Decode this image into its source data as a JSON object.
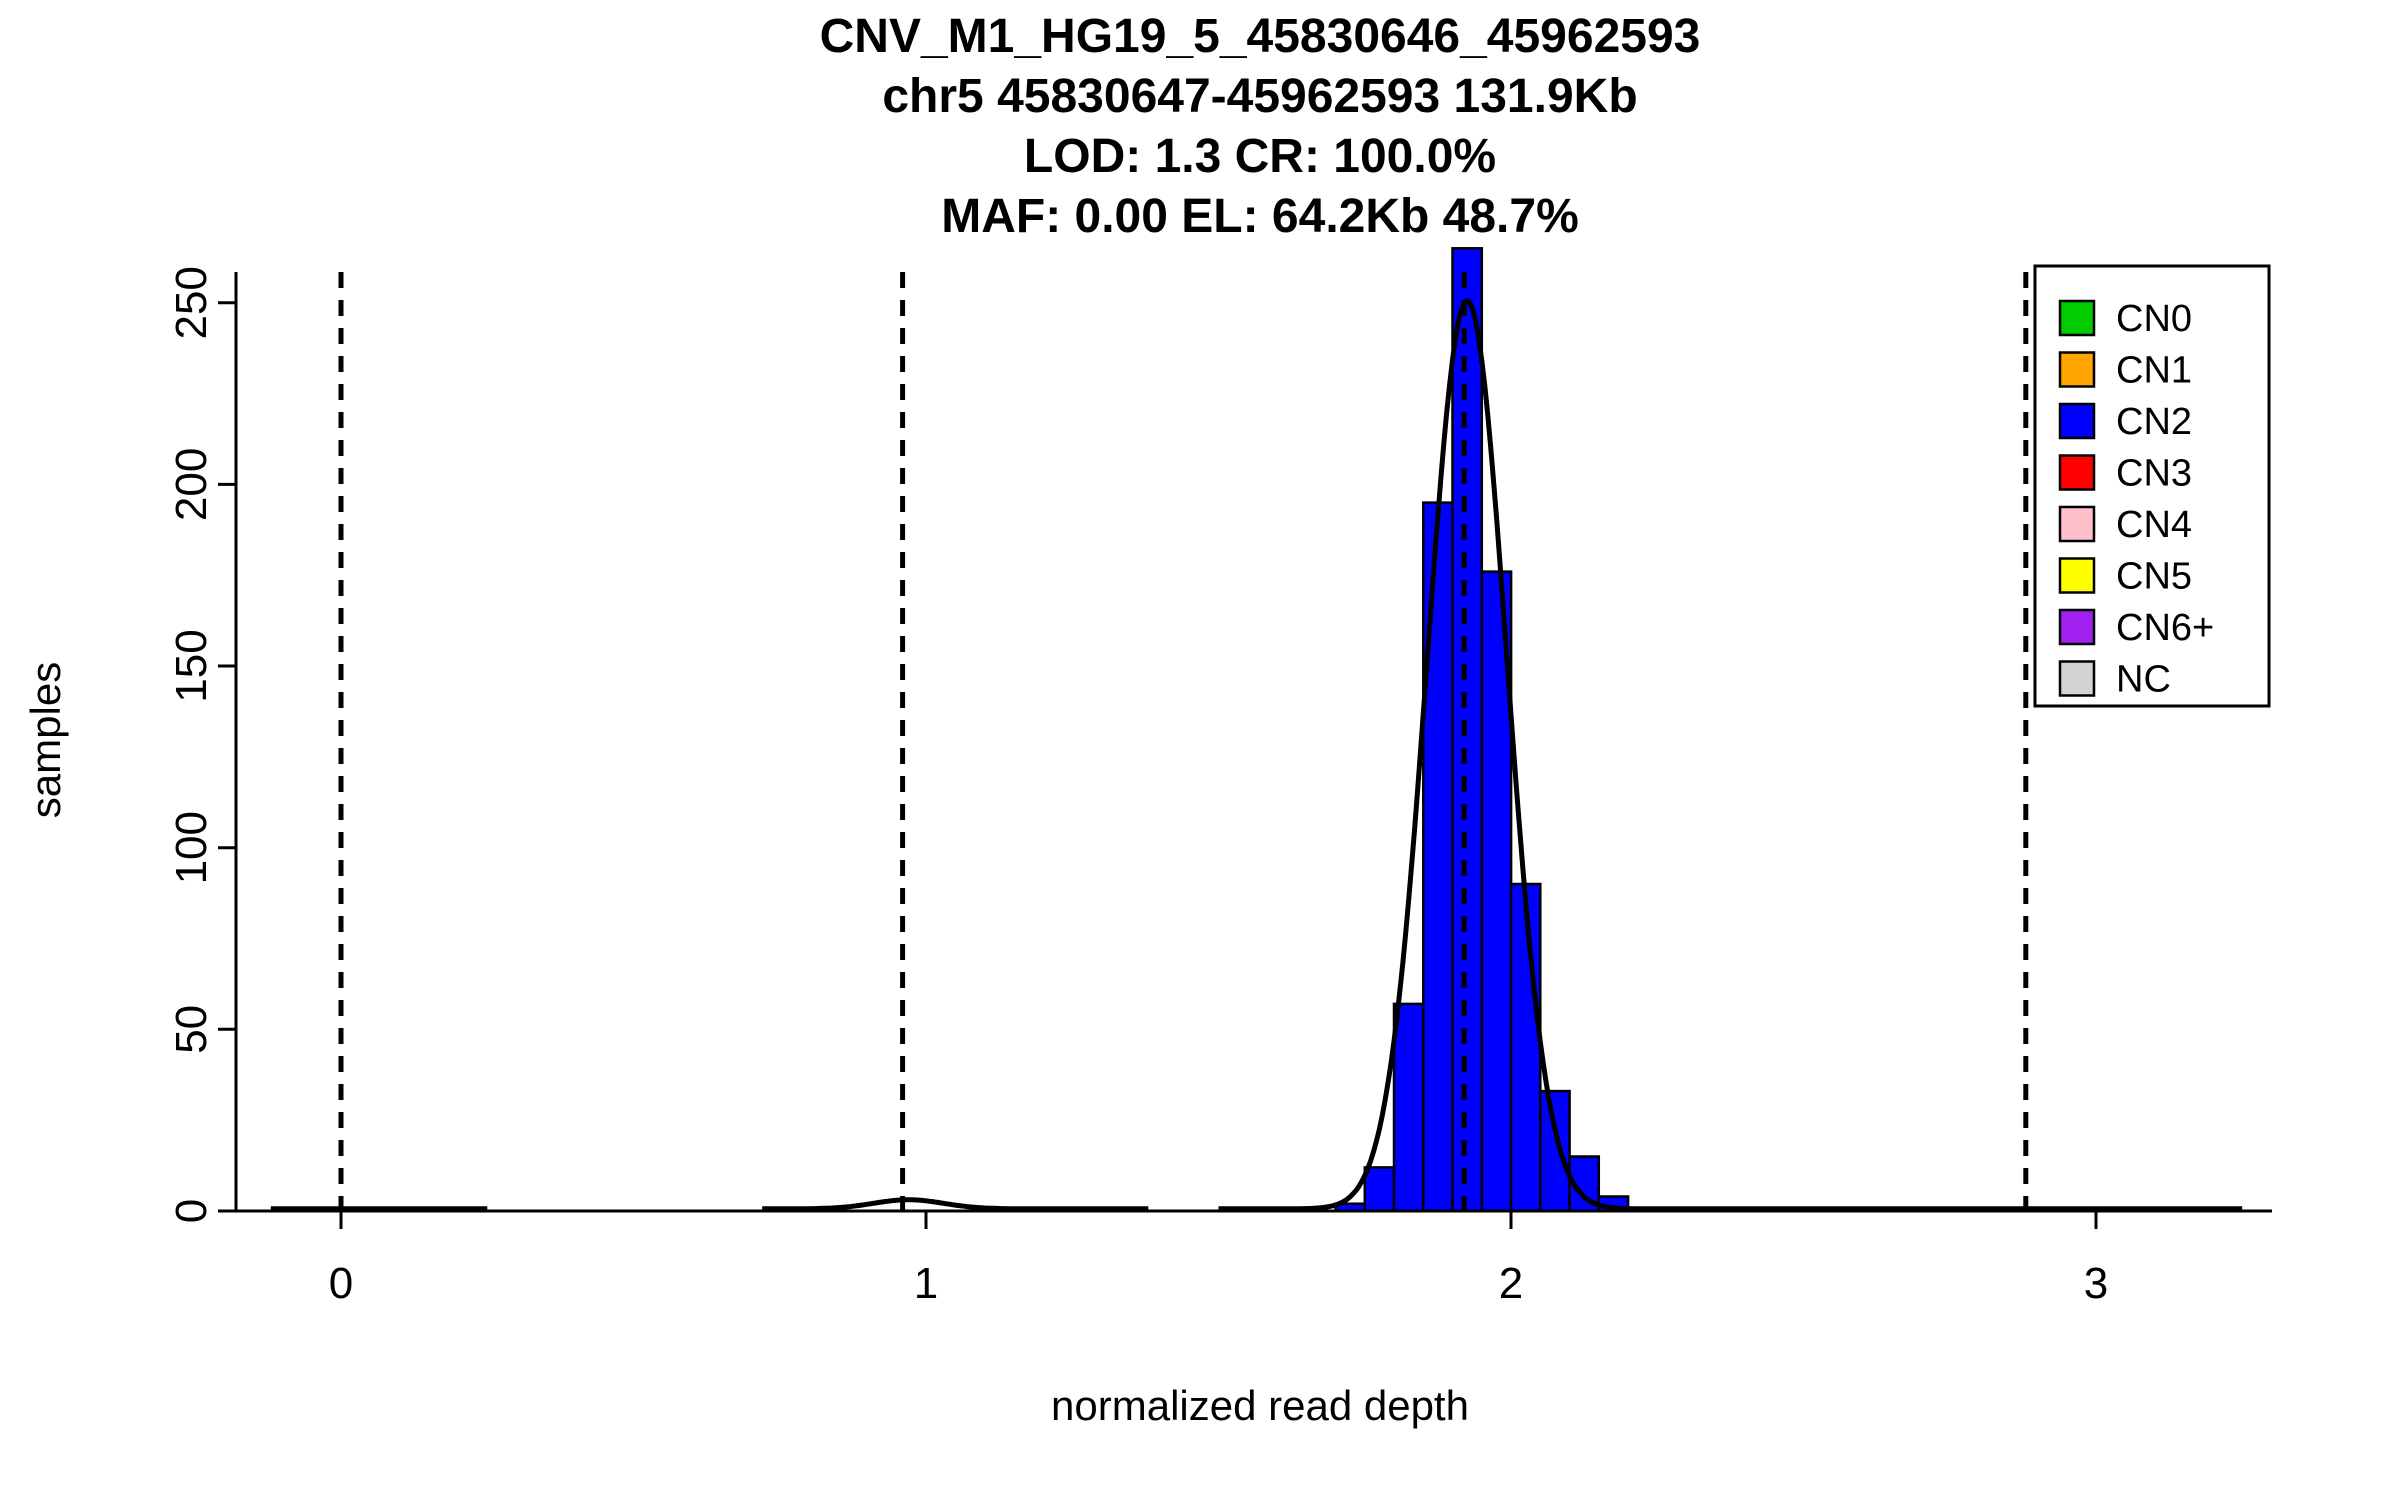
{
  "chart_data": {
    "type": "bar",
    "subtype": "histogram_with_density_curve",
    "title_lines": [
      "CNV_M1_HG19_5_45830646_45962593",
      "chr5 45830647-45962593 131.9Kb",
      "LOD: 1.3 CR: 100.0%",
      "MAF: 0.00 EL: 64.2Kb 48.7%"
    ],
    "xlabel": "normalized read depth",
    "ylabel": "samples",
    "xlim": [
      -0.18,
      3.3
    ],
    "ylim": [
      0,
      265
    ],
    "xticks": [
      0,
      1,
      2,
      3
    ],
    "yticks": [
      0,
      50,
      100,
      150,
      200,
      250
    ],
    "grid": false,
    "dashed_lines_x": [
      0,
      0.96,
      1.92,
      2.88
    ],
    "bin_width": 0.05,
    "bar_color": "#0000ff",
    "bins": [
      {
        "x0": 1.7,
        "count": 2
      },
      {
        "x0": 1.75,
        "count": 12
      },
      {
        "x0": 1.8,
        "count": 57
      },
      {
        "x0": 1.85,
        "count": 195
      },
      {
        "x0": 1.9,
        "count": 265
      },
      {
        "x0": 1.95,
        "count": 176
      },
      {
        "x0": 2.0,
        "count": 90
      },
      {
        "x0": 2.05,
        "count": 33
      },
      {
        "x0": 2.1,
        "count": 15
      },
      {
        "x0": 2.15,
        "count": 4
      }
    ],
    "density": {
      "color": "#000000",
      "baseline": 0.6,
      "segments": [
        {
          "from": -0.12,
          "to": 0.25,
          "peaks": []
        },
        {
          "from": 0.72,
          "to": 1.38,
          "peaks": [
            {
              "mean": 0.97,
              "sd": 0.06,
              "amp": 2.5
            }
          ]
        },
        {
          "from": 1.5,
          "to": 3.25,
          "peaks": [
            {
              "mean": 1.925,
              "sd": 0.068,
              "amp": 250
            }
          ]
        }
      ]
    },
    "legend": {
      "position": "top-right",
      "entries": [
        {
          "label": "CN0",
          "color": "#00cc00"
        },
        {
          "label": "CN1",
          "color": "#ffa500"
        },
        {
          "label": "CN2",
          "color": "#0000ff"
        },
        {
          "label": "CN3",
          "color": "#ff0000"
        },
        {
          "label": "CN4",
          "color": "#ffc0cb"
        },
        {
          "label": "CN5",
          "color": "#ffff00"
        },
        {
          "label": "CN6+",
          "color": "#a020f0"
        },
        {
          "label": "NC",
          "color": "#d3d3d3"
        }
      ]
    }
  }
}
